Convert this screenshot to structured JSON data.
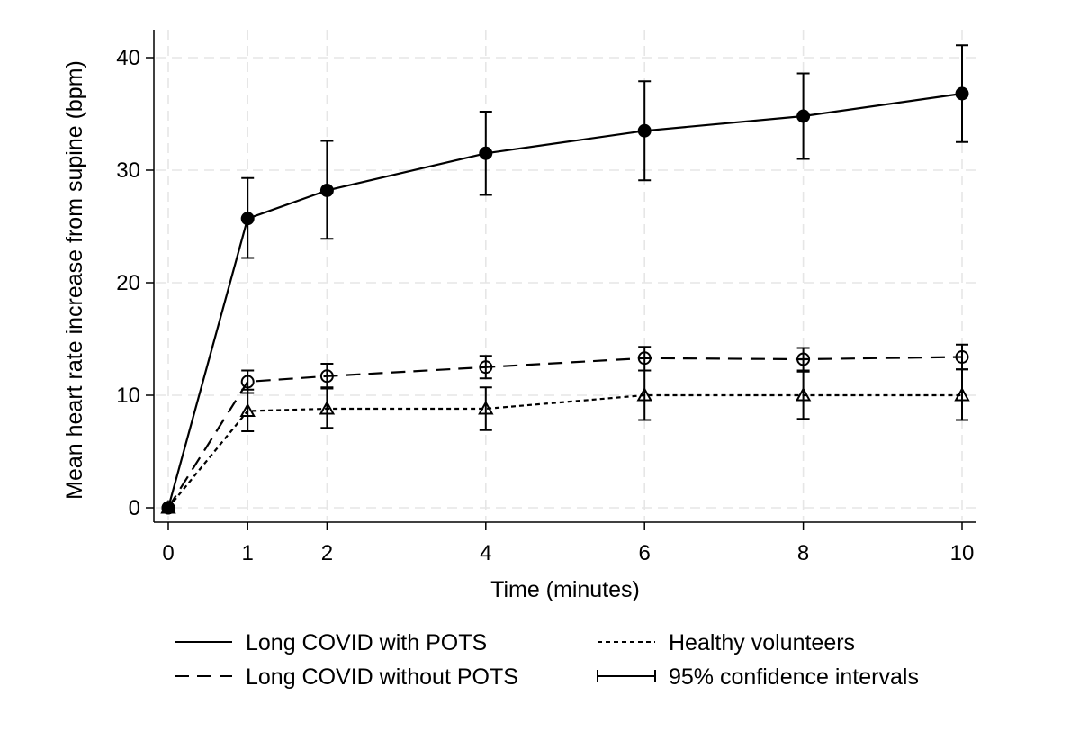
{
  "chart_data": {
    "type": "line",
    "title": "",
    "xlabel": "Time (minutes)",
    "ylabel": "Mean heart rate increase from supine (bpm)",
    "x": [
      0,
      1,
      2,
      4,
      6,
      8,
      10
    ],
    "x_ticks": [
      0,
      1,
      2,
      4,
      6,
      8,
      10
    ],
    "x_tick_labels": [
      "0",
      "1",
      "2",
      "4",
      "6",
      "8",
      "10"
    ],
    "y_ticks": [
      0,
      10,
      20,
      30,
      40
    ],
    "y_tick_labels": [
      "0",
      "10",
      "20",
      "30",
      "40"
    ],
    "xlim": [
      0,
      10
    ],
    "ylim": [
      0,
      40
    ],
    "grid": true,
    "legend_position": "bottom",
    "series": [
      {
        "name": "Long COVID with POTS",
        "line_style": "solid",
        "marker": "filled-circle",
        "values": [
          0,
          25.7,
          28.2,
          31.5,
          33.5,
          34.8,
          36.8
        ],
        "ci_lower": [
          0,
          22.2,
          23.9,
          27.8,
          29.1,
          31.0,
          32.5
        ],
        "ci_upper": [
          0,
          29.3,
          32.6,
          35.2,
          37.9,
          38.6,
          41.1
        ]
      },
      {
        "name": "Long COVID without POTS",
        "line_style": "dashed",
        "marker": "hollow-circle",
        "values": [
          0,
          11.2,
          11.7,
          12.5,
          13.3,
          13.2,
          13.4
        ],
        "ci_lower": [
          0,
          10.2,
          10.7,
          11.5,
          12.2,
          12.1,
          12.3
        ],
        "ci_upper": [
          0,
          12.2,
          12.8,
          13.5,
          14.3,
          14.2,
          14.5
        ]
      },
      {
        "name": "Healthy volunteers",
        "line_style": "dotted",
        "marker": "hollow-triangle",
        "values": [
          0,
          8.6,
          8.8,
          8.8,
          10.0,
          10.0,
          10.0
        ],
        "ci_lower": [
          0,
          6.8,
          7.1,
          6.9,
          7.8,
          7.9,
          7.8
        ],
        "ci_upper": [
          0,
          10.5,
          10.6,
          10.7,
          12.2,
          12.2,
          12.3
        ]
      }
    ],
    "legend_items": [
      {
        "label": "Long COVID with POTS",
        "style": "solid"
      },
      {
        "label": "Long COVID without POTS",
        "style": "dashed"
      },
      {
        "label": "Healthy volunteers",
        "style": "dotted"
      },
      {
        "label": "95% confidence intervals",
        "style": "errorbar"
      }
    ],
    "colors": {
      "line": "#000000",
      "grid": "#e6e6e6",
      "background": "#ffffff"
    }
  }
}
